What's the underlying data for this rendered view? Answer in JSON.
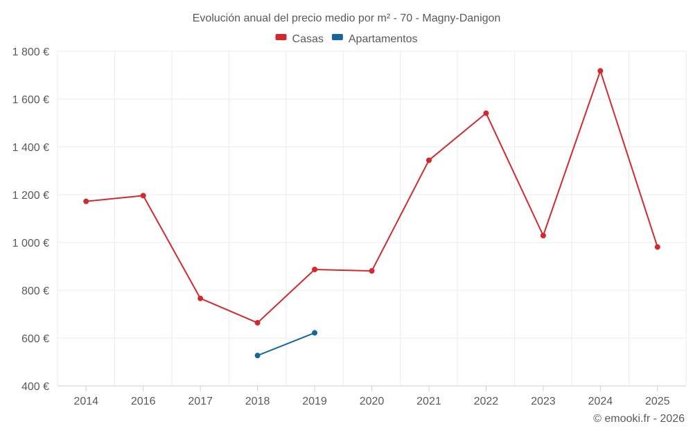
{
  "chart_data": {
    "type": "line",
    "title": "Evolución anual del precio medio por m² - 70 - Magny-Danigon",
    "categories": [
      "2014",
      "2016",
      "2017",
      "2018",
      "2019",
      "2020",
      "2021",
      "2022",
      "2023",
      "2024",
      "2025"
    ],
    "yticks": [
      "400 €",
      "600 €",
      "800 €",
      "1 000 €",
      "1 200 €",
      "1 400 €",
      "1 600 €",
      "1 800 €"
    ],
    "ylim": [
      400,
      1800
    ],
    "ystep": 200,
    "legend_position": "top-center",
    "series": [
      {
        "name": "Casas",
        "color": "#d3282d",
        "values": [
          1172,
          1196,
          766,
          664,
          887,
          881,
          1344,
          1541,
          1029,
          1718,
          981
        ]
      },
      {
        "name": "Apartamentos",
        "color": "#14679c",
        "values": [
          null,
          null,
          null,
          527,
          622,
          null,
          null,
          null,
          null,
          null,
          null
        ]
      }
    ]
  },
  "credit": "© emooki.fr - 2026"
}
